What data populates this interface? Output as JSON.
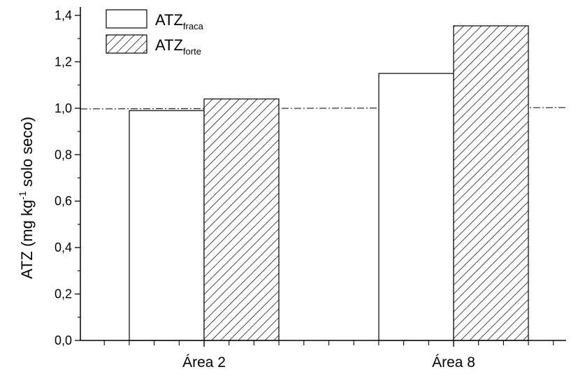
{
  "chart_data": {
    "type": "bar",
    "categories": [
      "Área 2",
      "Área 8"
    ],
    "series": [
      {
        "legend_main": "ATZ",
        "legend_sub": "fraca",
        "pattern": "none",
        "values": [
          0.99,
          1.15
        ]
      },
      {
        "legend_main": "ATZ",
        "legend_sub": "forte",
        "pattern": "hatched",
        "values": [
          1.04,
          1.355
        ]
      }
    ],
    "ylabel": {
      "prefix": "ATZ (mg kg",
      "superscript": "-1",
      "suffix": " solo seco)"
    },
    "ylim": [
      0.0,
      1.4
    ],
    "yticks": [
      0.0,
      0.2,
      0.4,
      0.6,
      0.8,
      1.0,
      1.2,
      1.4
    ],
    "ytick_labels": [
      "0,0",
      "0,2",
      "0,4",
      "0,6",
      "0,8",
      "1,0",
      "1,2",
      "1,4"
    ],
    "reference_line": {
      "y": 1.0,
      "style": "dash-dot"
    },
    "grid": false,
    "legend_position": "top-left",
    "colors": {
      "bar_fill": "#ffffff",
      "stroke": "#000000"
    }
  }
}
